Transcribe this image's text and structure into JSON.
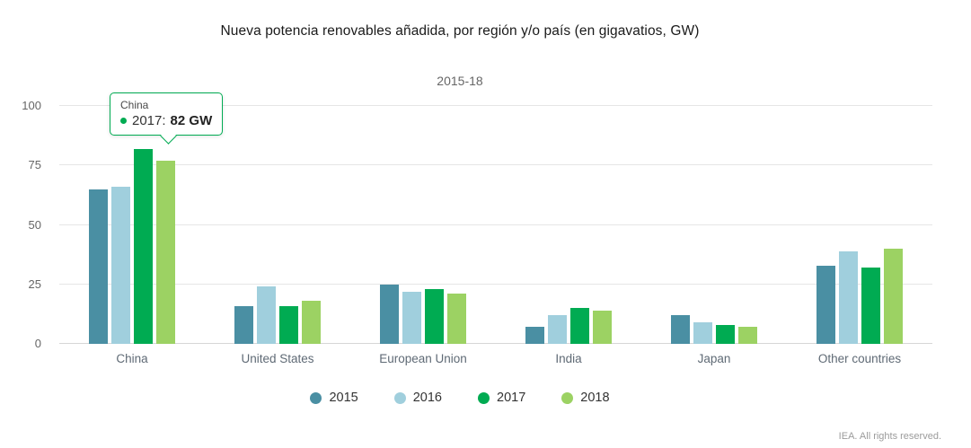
{
  "chart": {
    "title": "Nueva potencia renovables añadida, por región y/o país (en gigavatios, GW)",
    "subtitle": "2015-18",
    "footer": "IEA. All rights reserved."
  },
  "tooltip": {
    "category": "China",
    "series_label": "2017:",
    "value": "82 GW",
    "accent": "#00ab52"
  },
  "chart_data": {
    "type": "bar",
    "title": "Nueva potencia renovables añadida, por región y/o país (en gigavatios, GW)",
    "subtitle": "2015-18",
    "categories": [
      "China",
      "United States",
      "European Union",
      "India",
      "Japan",
      "Other countries"
    ],
    "series": [
      {
        "name": "2015",
        "color": "#4a8fa3",
        "values": [
          65,
          16,
          25,
          7,
          12,
          33
        ]
      },
      {
        "name": "2016",
        "color": "#a0cfdd",
        "values": [
          66,
          24,
          22,
          12,
          9,
          39
        ]
      },
      {
        "name": "2017",
        "color": "#00ab52",
        "values": [
          82,
          16,
          23,
          15,
          8,
          32
        ]
      },
      {
        "name": "2018",
        "color": "#9cd263",
        "values": [
          77,
          18,
          21,
          14,
          7,
          40
        ]
      }
    ],
    "ylabel": "",
    "xlabel": "",
    "ylim": [
      0,
      100
    ],
    "yticks": [
      0,
      25,
      50,
      75,
      100
    ],
    "grid": true,
    "legend_position": "bottom"
  }
}
